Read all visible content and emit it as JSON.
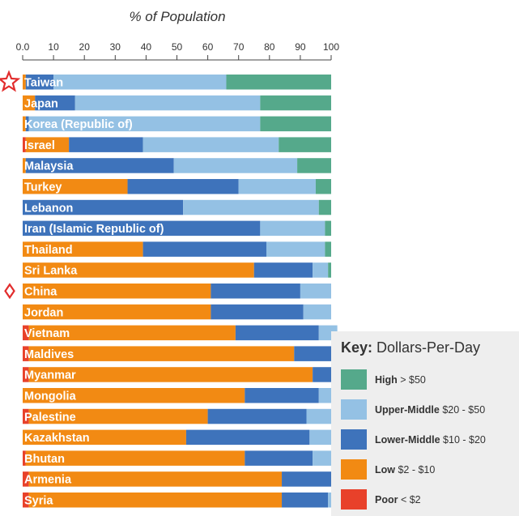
{
  "chart_data": {
    "type": "bar",
    "stacked": true,
    "orientation": "horizontal",
    "xlabel": "% of Population",
    "xlim": [
      0,
      100
    ],
    "xticks": [
      "0.0",
      "10",
      "20",
      "30",
      "40",
      "50",
      "60",
      "70",
      "80",
      "90",
      "100"
    ],
    "categories": [
      "Taiwan",
      "Japan",
      "Korea (Republic of)",
      "Israel",
      "Malaysia",
      "Turkey",
      "Lebanon",
      "Iran (Islamic Republic of)",
      "Thailand",
      "Sri Lanka",
      "China",
      "Jordan",
      "Vietnam",
      "Maldives",
      "Myanmar",
      "Mongolia",
      "Palestine",
      "Kazakhstan",
      "Bhutan",
      "Armenia",
      "Syria"
    ],
    "series": [
      {
        "name": "Poor",
        "color": "#e8412a",
        "values": [
          0,
          0,
          0,
          1,
          0,
          0,
          0,
          0,
          0,
          0,
          0,
          0,
          2,
          2,
          2,
          0,
          2,
          0,
          1,
          2,
          2
        ]
      },
      {
        "name": "Low",
        "color": "#f28a13",
        "values": [
          1,
          4,
          1,
          14,
          1,
          34,
          0,
          0,
          39,
          75,
          61,
          61,
          67,
          86,
          92,
          72,
          58,
          53,
          71,
          82,
          82
        ]
      },
      {
        "name": "Lower-Middle",
        "color": "#3e73bb",
        "values": [
          9,
          13,
          1,
          24,
          48,
          36,
          52,
          77,
          40,
          19,
          29,
          30,
          27,
          12,
          7,
          24,
          32,
          40,
          22,
          17,
          15
        ]
      },
      {
        "name": "Upper-Middle",
        "color": "#94c1e4",
        "values": [
          56,
          60,
          75,
          44,
          40,
          25,
          44,
          21,
          19,
          5,
          10,
          9,
          6,
          3,
          1,
          4,
          9,
          8,
          6,
          1,
          3
        ]
      },
      {
        "name": "High",
        "color": "#55a98b",
        "values": [
          34,
          23,
          23,
          17,
          11,
          5,
          4,
          2,
          2,
          1,
          0,
          0,
          0,
          0,
          0,
          0,
          0,
          0,
          0,
          0,
          0
        ]
      }
    ],
    "markers": [
      {
        "category": "Taiwan",
        "shape": "star",
        "color": "#e22d2d"
      },
      {
        "category": "China",
        "shape": "diamond",
        "color": "#e22d2d"
      }
    ]
  },
  "legend": {
    "title_bold": "Key:",
    "title_rest": " Dollars-Per-Day",
    "items": [
      {
        "bold": "High",
        "rest": " > $50",
        "color": "#55a98b"
      },
      {
        "bold": "Upper-Middle",
        "rest": " $20 - $50",
        "color": "#94c1e4"
      },
      {
        "bold": "Lower-Middle",
        "rest": " $10 - $20",
        "color": "#3e73bb"
      },
      {
        "bold": "Low",
        "rest": " $2 - $10",
        "color": "#f28a13"
      },
      {
        "bold": "Poor",
        "rest": " < $2",
        "color": "#e8412a"
      }
    ]
  }
}
